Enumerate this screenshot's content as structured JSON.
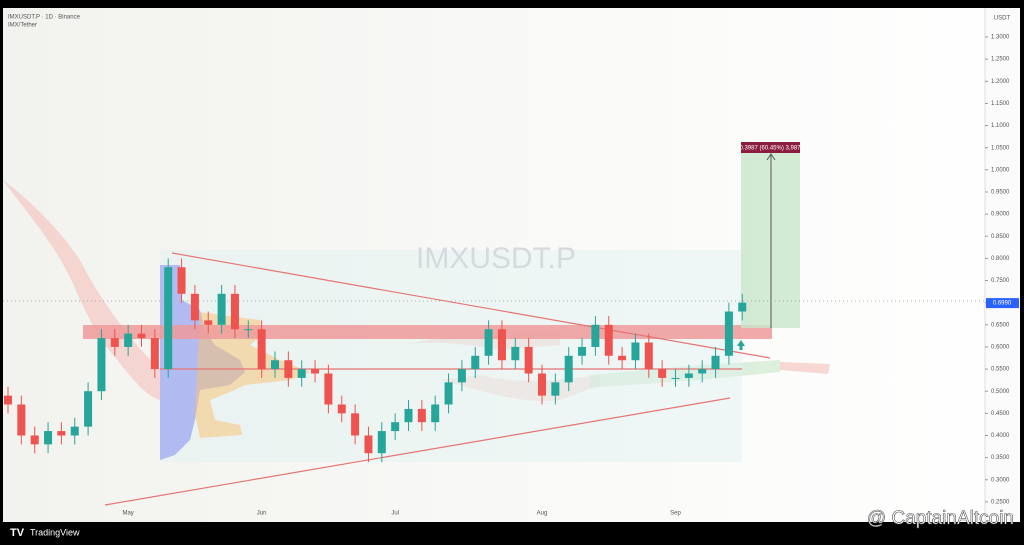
{
  "chart_data": {
    "type": "candlestick",
    "title": "IMXUSDT.P",
    "header_lines": [
      "IMXUSDT.P · 1D · Binance",
      "IMX/Tether"
    ],
    "axis_unit": "USDT",
    "categories": [
      null,
      null,
      null,
      null,
      null,
      null,
      null,
      null,
      null,
      "May",
      null,
      null,
      null,
      null,
      null,
      null,
      null,
      null,
      null,
      "Jun",
      null,
      null,
      null,
      null,
      null,
      null,
      null,
      null,
      null,
      "Jul",
      null,
      null,
      null,
      null,
      null,
      null,
      null,
      null,
      null,
      null,
      "Aug",
      null,
      null,
      null,
      null,
      null,
      null,
      null,
      null,
      null,
      "Sep",
      null,
      null,
      null,
      null,
      null
    ],
    "open": [
      0.49,
      0.47,
      0.4,
      0.38,
      0.41,
      0.4,
      0.42,
      0.5,
      0.62,
      0.6,
      0.63,
      0.62,
      0.55,
      0.78,
      0.72,
      0.66,
      0.65,
      0.72,
      0.64,
      0.64,
      0.55,
      0.57,
      0.53,
      0.55,
      0.54,
      0.47,
      0.45,
      0.4,
      0.36,
      0.41,
      0.43,
      0.46,
      0.43,
      0.47,
      0.52,
      0.55,
      0.58,
      0.64,
      0.57,
      0.6,
      0.54,
      0.49,
      0.52,
      0.58,
      0.6,
      0.65,
      0.58,
      0.57,
      0.61,
      0.55,
      0.53,
      0.53,
      0.54,
      0.55,
      0.58,
      0.68
    ],
    "high": [
      0.51,
      0.49,
      0.42,
      0.43,
      0.43,
      0.44,
      0.52,
      0.64,
      0.64,
      0.65,
      0.65,
      0.64,
      0.8,
      0.8,
      0.74,
      0.68,
      0.74,
      0.74,
      0.66,
      0.66,
      0.59,
      0.59,
      0.57,
      0.57,
      0.56,
      0.49,
      0.47,
      0.42,
      0.43,
      0.45,
      0.48,
      0.48,
      0.49,
      0.54,
      0.57,
      0.6,
      0.66,
      0.66,
      0.62,
      0.62,
      0.56,
      0.54,
      0.6,
      0.62,
      0.67,
      0.67,
      0.6,
      0.63,
      0.63,
      0.57,
      0.55,
      0.56,
      0.57,
      0.6,
      0.7,
      0.72
    ],
    "low": [
      0.45,
      0.38,
      0.36,
      0.36,
      0.38,
      0.38,
      0.4,
      0.48,
      0.58,
      0.58,
      0.6,
      0.53,
      0.53,
      0.7,
      0.64,
      0.63,
      0.63,
      0.62,
      0.62,
      0.53,
      0.53,
      0.51,
      0.51,
      0.52,
      0.45,
      0.43,
      0.38,
      0.34,
      0.34,
      0.39,
      0.41,
      0.41,
      0.41,
      0.45,
      0.5,
      0.53,
      0.56,
      0.55,
      0.55,
      0.52,
      0.47,
      0.47,
      0.5,
      0.56,
      0.58,
      0.56,
      0.55,
      0.55,
      0.53,
      0.51,
      0.51,
      0.51,
      0.52,
      0.53,
      0.56,
      0.66
    ],
    "close": [
      0.47,
      0.4,
      0.38,
      0.41,
      0.4,
      0.42,
      0.5,
      0.62,
      0.6,
      0.63,
      0.62,
      0.55,
      0.78,
      0.72,
      0.66,
      0.65,
      0.72,
      0.64,
      0.64,
      0.55,
      0.57,
      0.53,
      0.55,
      0.54,
      0.47,
      0.45,
      0.4,
      0.36,
      0.41,
      0.43,
      0.46,
      0.43,
      0.47,
      0.52,
      0.55,
      0.58,
      0.64,
      0.57,
      0.6,
      0.54,
      0.49,
      0.52,
      0.58,
      0.6,
      0.65,
      0.58,
      0.57,
      0.61,
      0.55,
      0.53,
      0.53,
      0.54,
      0.55,
      0.58,
      0.68,
      0.7
    ],
    "up_color": "#26a69a",
    "down_color": "#ef5350",
    "ylim": [
      0.243,
      1.361
    ],
    "yticks": [
      {
        "value": 0.25,
        "label": "0.2500"
      },
      {
        "value": 0.3,
        "label": "0.3000"
      },
      {
        "value": 0.35,
        "label": "0.3500"
      },
      {
        "value": 0.4,
        "label": "0.4000"
      },
      {
        "value": 0.45,
        "label": "0.4500"
      },
      {
        "value": 0.5,
        "label": "0.5000"
      },
      {
        "value": 0.55,
        "label": "0.5500"
      },
      {
        "value": 0.6,
        "label": "0.6000"
      },
      {
        "value": 0.65,
        "label": "0.6500"
      },
      {
        "value": 0.7,
        "label": "0.7000"
      },
      {
        "value": 0.75,
        "label": "0.7500"
      },
      {
        "value": 0.8,
        "label": "0.8000"
      },
      {
        "value": 0.85,
        "label": "0.8500"
      },
      {
        "value": 0.9,
        "label": "0.9000"
      },
      {
        "value": 0.95,
        "label": "0.9500"
      },
      {
        "value": 1.0,
        "label": "1.0000"
      },
      {
        "value": 1.05,
        "label": "1.0500"
      },
      {
        "value": 1.1,
        "label": "1.1000"
      },
      {
        "value": 1.15,
        "label": "1.1500"
      },
      {
        "value": 1.2,
        "label": "1.2000"
      },
      {
        "value": 1.25,
        "label": "1.2500"
      },
      {
        "value": 1.3,
        "label": "1.3000"
      }
    ],
    "last_price": {
      "value": 0.699,
      "label": "0.6990"
    },
    "target_label": "0.3987 (60.45%) 3,987",
    "brand": "TradingView",
    "watermark": "@ CaptainAltcoin"
  }
}
